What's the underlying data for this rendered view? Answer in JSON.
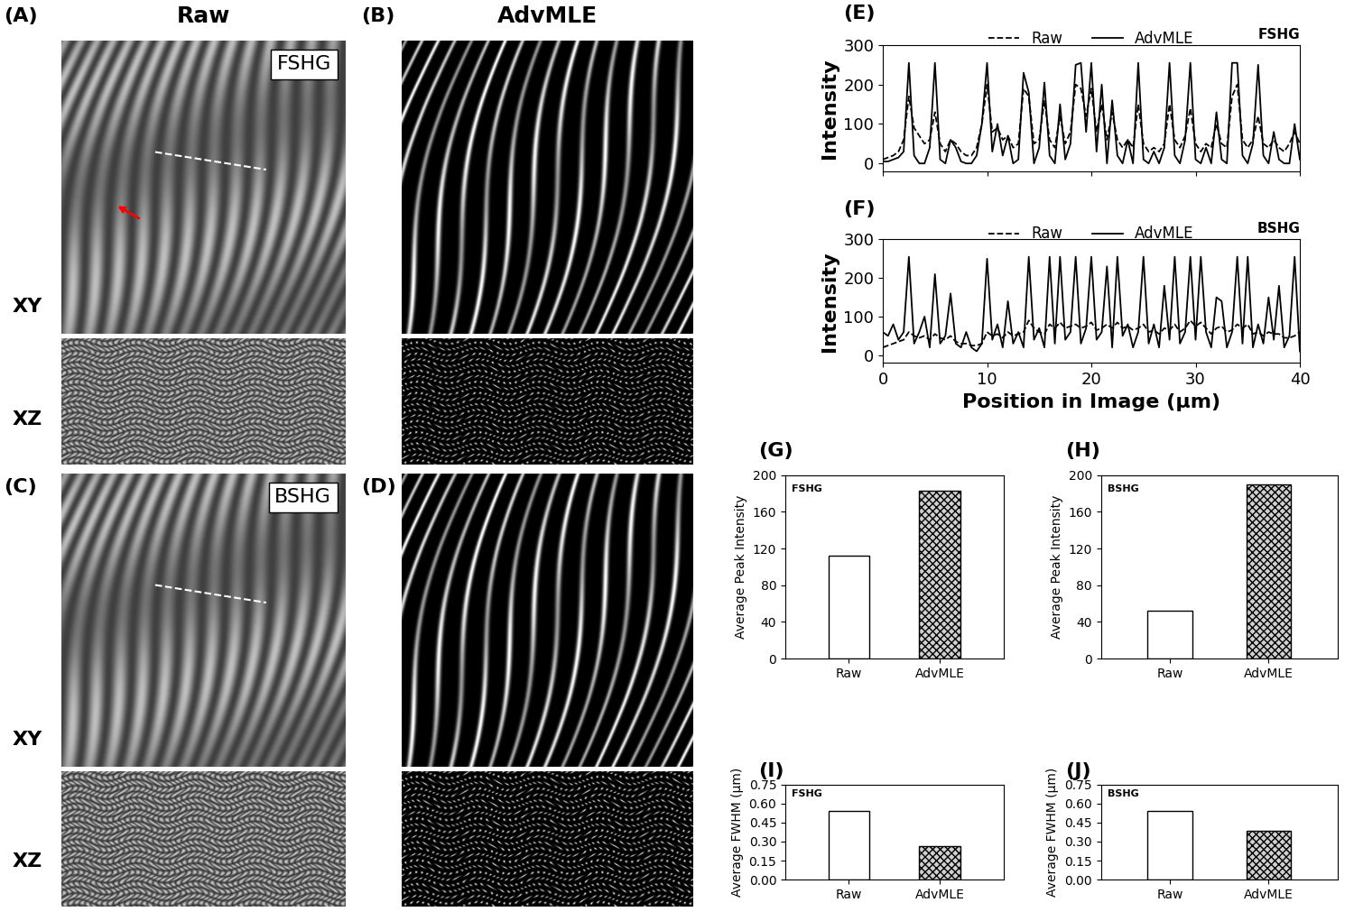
{
  "headings": [
    "Raw",
    "AdvMLE"
  ],
  "images": [
    {
      "panel_label": "(A)",
      "badge": "FSHG",
      "views": [
        "XY",
        "XZ"
      ]
    },
    {
      "panel_label": "(B)"
    },
    {
      "panel_label": "(C)",
      "badge": "BSHG",
      "views": [
        "XY",
        "XZ"
      ]
    },
    {
      "panel_label": "(D)"
    }
  ],
  "chart_data": [
    {
      "panel_label": "(E)",
      "type": "line",
      "annotations": [
        "FSHG"
      ],
      "y_label": "Intensity",
      "tick_labels": "y",
      "legend": "upper center",
      "xlim": [
        0,
        40
      ],
      "xticks": [
        0,
        10,
        20,
        30,
        40
      ],
      "ylim": [
        -20,
        300
      ],
      "yticks": [
        0,
        100,
        200,
        300
      ],
      "x": [
        0,
        0.5,
        1,
        1.5,
        2,
        2.5,
        3,
        3.5,
        4,
        4.5,
        5,
        5.5,
        6,
        6.5,
        7,
        7.5,
        8,
        8.5,
        9,
        9.5,
        10,
        10.5,
        11,
        11.5,
        12,
        12.5,
        13,
        13.5,
        14,
        14.5,
        15,
        15.5,
        16,
        16.5,
        17,
        17.5,
        18,
        18.5,
        19,
        19.5,
        20,
        20.5,
        21,
        21.5,
        22,
        22.5,
        23,
        23.5,
        24,
        24.5,
        25,
        25.5,
        26,
        26.5,
        27,
        27.5,
        28,
        28.5,
        29,
        29.5,
        30,
        30.5,
        31,
        31.5,
        32,
        32.5,
        33,
        33.5,
        34,
        34.5,
        35,
        35.5,
        36,
        36.5,
        37,
        37.5,
        38,
        38.5,
        39,
        39.5,
        40
      ],
      "series": [
        {
          "name": "Raw",
          "color": "#000000",
          "line_style": "dashed",
          "values": [
            10,
            15,
            20,
            30,
            60,
            170,
            90,
            70,
            50,
            60,
            130,
            50,
            30,
            60,
            50,
            30,
            20,
            20,
            40,
            100,
            200,
            80,
            90,
            60,
            70,
            40,
            50,
            190,
            170,
            50,
            60,
            160,
            60,
            40,
            120,
            50,
            80,
            200,
            190,
            120,
            190,
            80,
            150,
            60,
            130,
            60,
            40,
            60,
            40,
            150,
            50,
            30,
            40,
            30,
            50,
            150,
            60,
            40,
            70,
            140,
            50,
            30,
            50,
            40,
            100,
            50,
            40,
            170,
            200,
            60,
            40,
            60,
            120,
            50,
            40,
            60,
            40,
            30,
            50,
            80,
            50
          ]
        },
        {
          "name": "AdvMLE",
          "color": "#000000",
          "line_style": "solid",
          "values": [
            5,
            5,
            10,
            15,
            30,
            255,
            20,
            0,
            0,
            40,
            255,
            10,
            0,
            60,
            40,
            5,
            0,
            0,
            20,
            100,
            255,
            30,
            100,
            20,
            70,
            0,
            10,
            230,
            180,
            0,
            40,
            205,
            20,
            0,
            150,
            10,
            50,
            250,
            255,
            80,
            255,
            30,
            200,
            0,
            160,
            20,
            0,
            60,
            0,
            255,
            10,
            0,
            30,
            0,
            40,
            255,
            20,
            0,
            60,
            255,
            10,
            0,
            40,
            0,
            130,
            10,
            0,
            255,
            255,
            20,
            0,
            50,
            250,
            20,
            0,
            80,
            10,
            0,
            0,
            100,
            10
          ]
        }
      ]
    },
    {
      "panel_label": "(F)",
      "type": "line",
      "annotations": [
        "BSHG"
      ],
      "y_label": "Intensity",
      "x_label": "Position in Image (μm)",
      "legend": "upper center",
      "xlim": [
        0,
        40
      ],
      "xticks": [
        0,
        10,
        20,
        30,
        40
      ],
      "ylim": [
        -20,
        300
      ],
      "yticks": [
        0,
        100,
        200,
        300
      ],
      "x": [
        0,
        0.5,
        1,
        1.5,
        2,
        2.5,
        3,
        3.5,
        4,
        4.5,
        5,
        5.5,
        6,
        6.5,
        7,
        7.5,
        8,
        8.5,
        9,
        9.5,
        10,
        10.5,
        11,
        11.5,
        12,
        12.5,
        13,
        13.5,
        14,
        14.5,
        15,
        15.5,
        16,
        16.5,
        17,
        17.5,
        18,
        18.5,
        19,
        19.5,
        20,
        20.5,
        21,
        21.5,
        22,
        22.5,
        23,
        23.5,
        24,
        24.5,
        25,
        25.5,
        26,
        26.5,
        27,
        27.5,
        28,
        28.5,
        29,
        29.5,
        30,
        30.5,
        31,
        31.5,
        32,
        32.5,
        33,
        33.5,
        34,
        34.5,
        35,
        35.5,
        36,
        36.5,
        37,
        37.5,
        38,
        38.5,
        39,
        39.5,
        40
      ],
      "series": [
        {
          "name": "Raw",
          "color": "#000000",
          "line_style": "dashed",
          "values": [
            20,
            25,
            30,
            35,
            40,
            60,
            50,
            45,
            50,
            40,
            55,
            45,
            40,
            50,
            35,
            30,
            30,
            25,
            25,
            30,
            60,
            50,
            55,
            45,
            60,
            50,
            55,
            60,
            90,
            70,
            60,
            55,
            80,
            70,
            85,
            70,
            75,
            80,
            70,
            75,
            85,
            65,
            70,
            80,
            70,
            85,
            70,
            75,
            65,
            70,
            80,
            60,
            65,
            55,
            70,
            65,
            80,
            60,
            70,
            90,
            75,
            85,
            70,
            55,
            70,
            75,
            60,
            65,
            80,
            70,
            80,
            55,
            60,
            50,
            60,
            55,
            55,
            45,
            45,
            50,
            60
          ]
        },
        {
          "name": "AdvMLE",
          "color": "#000000",
          "line_style": "solid",
          "values": [
            60,
            50,
            80,
            40,
            60,
            255,
            30,
            60,
            100,
            20,
            210,
            30,
            50,
            160,
            30,
            20,
            60,
            20,
            10,
            30,
            250,
            40,
            80,
            20,
            140,
            30,
            60,
            20,
            255,
            40,
            70,
            20,
            255,
            30,
            255,
            40,
            60,
            255,
            30,
            70,
            255,
            40,
            60,
            230,
            20,
            255,
            50,
            80,
            20,
            60,
            255,
            30,
            80,
            20,
            180,
            40,
            255,
            30,
            60,
            255,
            40,
            255,
            60,
            20,
            150,
            140,
            20,
            60,
            255,
            30,
            255,
            20,
            80,
            30,
            150,
            40,
            180,
            20,
            50,
            255,
            10
          ]
        }
      ]
    },
    {
      "panel_label": "(G)",
      "type": "bar",
      "annotations": [
        "FSHG"
      ],
      "y_label": "Average Peak Intensity",
      "categories": [
        "Raw",
        "AdvMLE"
      ],
      "values": [
        112,
        183
      ],
      "colors": [
        "#ffffff",
        "#d0d0d0"
      ],
      "ylim": [
        0,
        200
      ],
      "yticks": [
        0,
        40,
        80,
        120,
        160,
        200
      ]
    },
    {
      "panel_label": "(H)",
      "type": "bar",
      "annotations": [
        "BSHG"
      ],
      "y_label": "Average Peak Intensity",
      "categories": [
        "Raw",
        "AdvMLE"
      ],
      "values": [
        52,
        190
      ],
      "colors": [
        "#ffffff",
        "#d0d0d0"
      ],
      "ylim": [
        0,
        200
      ],
      "yticks": [
        0,
        40,
        80,
        120,
        160,
        200
      ]
    },
    {
      "panel_label": "(I)",
      "type": "bar",
      "annotations": [
        "FSHG"
      ],
      "y_label": "Average FWHM (μm)",
      "categories": [
        "Raw",
        "AdvMLE"
      ],
      "values": [
        0.54,
        0.265
      ],
      "colors": [
        "#ffffff",
        "#d0d0d0"
      ],
      "ylim": [
        0,
        0.75
      ],
      "yticks": [
        {
          "value": 0,
          "label": "0.00"
        },
        {
          "value": 0.15,
          "label": "0.15"
        },
        {
          "value": 0.3,
          "label": "0.30"
        },
        {
          "value": 0.45,
          "label": "0.45"
        },
        {
          "value": 0.6,
          "label": "0.60"
        },
        {
          "value": 0.75,
          "label": "0.75"
        }
      ]
    },
    {
      "panel_label": "(J)",
      "type": "bar",
      "annotations": [
        "BSHG"
      ],
      "y_label": "Average FWHM (μm)",
      "categories": [
        "Raw",
        "AdvMLE"
      ],
      "values": [
        0.545,
        0.385
      ],
      "colors": [
        "#ffffff",
        "#d0d0d0"
      ],
      "ylim": [
        0,
        0.75
      ],
      "yticks": [
        {
          "value": 0,
          "label": "0.00"
        },
        {
          "value": 0.15,
          "label": "0.15"
        },
        {
          "value": 0.3,
          "label": "0.30"
        },
        {
          "value": 0.45,
          "label": "0.45"
        },
        {
          "value": 0.6,
          "label": "0.60"
        },
        {
          "value": 0.75,
          "label": "0.75"
        }
      ]
    }
  ]
}
